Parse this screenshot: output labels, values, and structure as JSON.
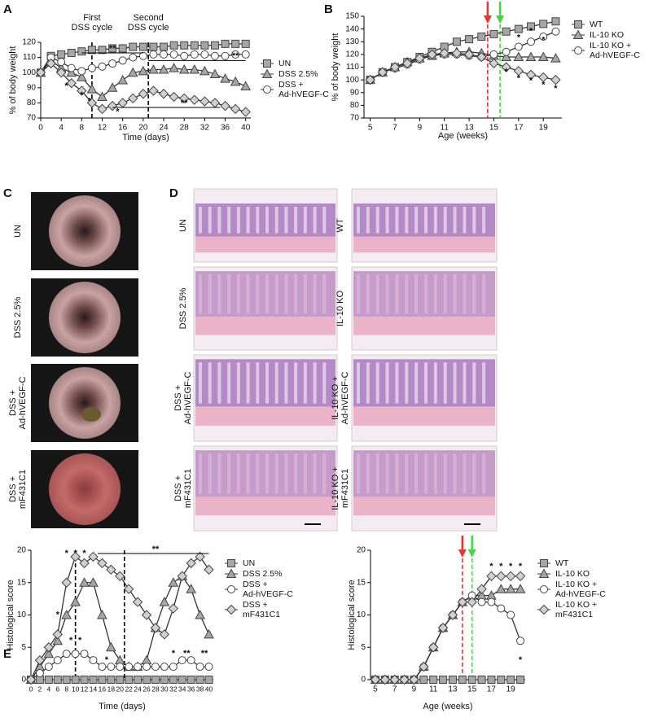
{
  "panel_labels": [
    "A",
    "B",
    "C",
    "D",
    "E"
  ],
  "photo_panels": {
    "C": [
      "UN",
      "DSS 2.5%",
      "DSS +\nAd-hVEGF-C",
      "DSS +\nmF431C1"
    ],
    "D_left": [
      "UN",
      "DSS 2.5%",
      "DSS +\nAd-hVEGF-C",
      "DSS +\nmF431C1"
    ],
    "D_right": [
      "WT",
      "IL-10 KO",
      "IL-10 KO +\nAd-hVEGF-C",
      "IL-10 KO +\nmF431C1"
    ]
  },
  "chart_data": [
    {
      "type": "line",
      "xlabel": "Time (days)",
      "ylabel": "% of body weight",
      "x": [
        0,
        2,
        4,
        6,
        8,
        10,
        12,
        14,
        16,
        18,
        20,
        22,
        24,
        26,
        28,
        30,
        32,
        34,
        36,
        38,
        40
      ],
      "xlim": [
        0,
        41
      ],
      "xticks": [
        0,
        4,
        8,
        12,
        16,
        20,
        24,
        28,
        32,
        36,
        40
      ],
      "ylim": [
        70,
        120
      ],
      "yticks": [
        70,
        80,
        90,
        100,
        110,
        120
      ],
      "series": [
        {
          "name": "UN",
          "color": "#a6a6a6",
          "marker": "square",
          "values": [
            100,
            111,
            112,
            113,
            114,
            115,
            115,
            116,
            116,
            117,
            117,
            117,
            117,
            118,
            118,
            118,
            118,
            118,
            119,
            119,
            119
          ]
        },
        {
          "name": "DSS 2.5%",
          "color": "#a6a6a6",
          "marker": "triangle",
          "values": [
            100,
            108,
            103,
            100,
            97,
            89,
            84,
            90,
            95,
            100,
            101,
            102,
            102,
            103,
            102,
            102,
            101,
            99,
            96,
            94,
            91
          ]
        },
        {
          "name": "DSS +\nAd-hVEGF-C",
          "color": "#ffffff",
          "marker": "circle",
          "values": [
            100,
            110,
            107,
            103,
            101,
            103,
            104,
            106,
            108,
            110,
            111,
            112,
            112,
            112,
            111,
            112,
            112,
            111,
            111,
            112,
            112
          ]
        },
        {
          "name": null,
          "color": "#d0d0d0",
          "marker": "diamond",
          "values": [
            100,
            106,
            100,
            93,
            88,
            80,
            76,
            78,
            80,
            83,
            86,
            88,
            86,
            84,
            83,
            82,
            81,
            80,
            78,
            76,
            74
          ]
        }
      ],
      "vlines": [
        {
          "x": 10,
          "color": "#000000",
          "dash": true,
          "arrow": false
        },
        {
          "x": 21,
          "color": "#000000",
          "dash": true,
          "arrow": false
        }
      ],
      "annotations": [
        {
          "text": "First\nDSS cycle",
          "x": 10,
          "y": 133
        },
        {
          "text": "Second\nDSS cycle",
          "x": 21,
          "y": 133
        },
        {
          "text": "**",
          "x": 14,
          "y": 113,
          "bar": [
            8,
            20
          ]
        },
        {
          "text": "**",
          "x": 38,
          "y": 108,
          "bar": [
            21,
            40
          ]
        },
        {
          "text": "**",
          "x": 28,
          "y": 77,
          "bar": [
            14,
            35
          ]
        },
        {
          "text": "*",
          "x": 5,
          "y": 91
        },
        {
          "text": "*",
          "x": 8,
          "y": 85
        },
        {
          "text": "*",
          "x": 9.5,
          "y": 81
        },
        {
          "text": "*",
          "x": 15,
          "y": 74
        }
      ]
    },
    {
      "type": "line",
      "xlabel": "Age (weeks)",
      "ylabel": "% of body weight",
      "x": [
        5,
        6,
        7,
        8,
        9,
        10,
        11,
        12,
        13,
        14,
        15,
        16,
        17,
        18,
        19,
        20
      ],
      "xlim": [
        4.5,
        20.5
      ],
      "xticks": [
        5,
        7,
        9,
        11,
        13,
        15,
        17,
        19
      ],
      "ylim": [
        70,
        150
      ],
      "yticks": [
        70,
        80,
        90,
        100,
        110,
        120,
        130,
        140,
        150
      ],
      "series": [
        {
          "name": "WT",
          "color": "#a6a6a6",
          "marker": "square",
          "values": [
            100,
            106,
            110,
            114,
            118,
            122,
            126,
            130,
            132,
            134,
            136,
            138,
            140,
            142,
            144,
            146
          ]
        },
        {
          "name": "IL-10 KO",
          "color": "#a6a6a6",
          "marker": "triangle",
          "values": [
            100,
            106,
            110,
            114,
            117,
            119,
            121,
            122,
            122,
            121,
            119,
            118,
            118,
            118,
            118,
            117
          ]
        },
        {
          "name": "IL-10 KO +\nAd-hVEGF-C",
          "color": "#ffffff",
          "marker": "circle",
          "values": [
            100,
            106,
            109,
            112,
            116,
            119,
            120,
            120,
            119,
            118,
            120,
            122,
            126,
            130,
            134,
            138
          ]
        },
        {
          "name": null,
          "color": "#d0d0d0",
          "marker": "diamond",
          "values": [
            100,
            106,
            110,
            113,
            117,
            120,
            121,
            121,
            120,
            118,
            113,
            110,
            107,
            104,
            102,
            100
          ]
        }
      ],
      "vlines": [
        {
          "x": 14.5,
          "color": "#e8352e",
          "dash": true,
          "arrow": true
        },
        {
          "x": 15.5,
          "color": "#3ddc3a",
          "dash": true,
          "arrow": true
        }
      ],
      "annotations": [
        {
          "text": "*",
          "x": 16,
          "y": 106
        },
        {
          "text": "*",
          "x": 17,
          "y": 101
        },
        {
          "text": "*",
          "x": 18,
          "y": 99
        },
        {
          "text": "*",
          "x": 19,
          "y": 96
        },
        {
          "text": "*",
          "x": 20,
          "y": 93
        },
        {
          "text": "*",
          "x": 17,
          "y": 133
        },
        {
          "text": "*",
          "x": 18,
          "y": 138
        },
        {
          "text": "*",
          "x": 19,
          "y": 131
        }
      ]
    },
    {
      "type": "line",
      "xlabel": "Time (days)",
      "ylabel": "Histological score",
      "x": [
        0,
        2,
        4,
        6,
        8,
        10,
        12,
        14,
        16,
        18,
        20,
        22,
        24,
        26,
        28,
        30,
        32,
        34,
        36,
        38,
        40
      ],
      "xlim": [
        0,
        41
      ],
      "xticks": [
        0,
        2,
        4,
        6,
        8,
        10,
        12,
        14,
        16,
        18,
        20,
        22,
        24,
        26,
        28,
        30,
        32,
        34,
        36,
        38,
        40
      ],
      "ylim": [
        0,
        20
      ],
      "yticks": [
        0,
        5,
        10,
        15,
        20
      ],
      "series": [
        {
          "name": "UN",
          "color": "#a6a6a6",
          "marker": "square",
          "values": [
            0,
            0,
            0,
            0,
            0,
            0,
            0,
            0,
            0,
            0,
            0,
            0,
            0,
            0,
            0,
            0,
            0,
            0,
            0,
            0,
            0
          ]
        },
        {
          "name": "DSS 2.5%",
          "color": "#a6a6a6",
          "marker": "triangle",
          "values": [
            0,
            2,
            4,
            6,
            10,
            12,
            15,
            15,
            10,
            5,
            3,
            2,
            2,
            3,
            8,
            12,
            15,
            16,
            14,
            10,
            7
          ]
        },
        {
          "name": "DSS +\nAd-hVEGF-C",
          "color": "#ffffff",
          "marker": "circle",
          "values": [
            0,
            1,
            2,
            3,
            4,
            4,
            4,
            3,
            2,
            2,
            2,
            2,
            2,
            2,
            2,
            2,
            2,
            3,
            3,
            2,
            2
          ]
        },
        {
          "name": "DSS +\nmF431C1",
          "color": "#d0d0d0",
          "marker": "diamond",
          "values": [
            0,
            3,
            5,
            7,
            15,
            19,
            18,
            19,
            18,
            17,
            16,
            14,
            12,
            10,
            8,
            7,
            11,
            16,
            18,
            19,
            17
          ]
        }
      ],
      "vlines": [
        {
          "x": 10,
          "color": "#000000",
          "dash": true,
          "arrow": false
        },
        {
          "x": 21,
          "color": "#000000",
          "dash": true,
          "arrow": false
        }
      ],
      "annotations": [
        {
          "text": "**",
          "x": 28,
          "y": 19.5,
          "bar": [
            15,
            40
          ]
        },
        {
          "text": "*",
          "x": 8,
          "y": 19.5
        },
        {
          "text": "*",
          "x": 10,
          "y": 19.5
        },
        {
          "text": "*",
          "x": 12,
          "y": 19.5
        },
        {
          "text": "*",
          "x": 6,
          "y": 10
        },
        {
          "text": "*",
          "x": 9,
          "y": 6
        },
        {
          "text": "*",
          "x": 11,
          "y": 6
        },
        {
          "text": "*",
          "x": 17,
          "y": 3
        },
        {
          "text": "*",
          "x": 32,
          "y": 4
        },
        {
          "text": "**",
          "x": 35,
          "y": 4
        },
        {
          "text": "**",
          "x": 39,
          "y": 4
        }
      ]
    },
    {
      "type": "line",
      "xlabel": "Age (weeks)",
      "ylabel": "Histological score",
      "x": [
        5,
        6,
        7,
        8,
        9,
        10,
        11,
        12,
        13,
        14,
        15,
        16,
        17,
        18,
        19,
        20
      ],
      "xlim": [
        4.5,
        20.5
      ],
      "xticks": [
        5,
        7,
        9,
        11,
        13,
        15,
        17,
        19
      ],
      "ylim": [
        0,
        20
      ],
      "yticks": [
        0,
        5,
        10,
        15,
        20
      ],
      "series": [
        {
          "name": "WT",
          "color": "#a6a6a6",
          "marker": "square",
          "values": [
            0,
            0,
            0,
            0,
            0,
            0,
            0,
            0,
            0,
            0,
            0,
            0,
            0,
            0,
            0,
            0
          ]
        },
        {
          "name": "IL-10 KO",
          "color": "#a6a6a6",
          "marker": "triangle",
          "values": [
            0,
            0,
            0,
            0,
            0,
            2,
            5,
            8,
            10,
            12,
            13,
            13,
            13,
            14,
            14,
            14
          ]
        },
        {
          "name": "IL-10 KO +\nAd-hVEGF-C",
          "color": "#ffffff",
          "marker": "circle",
          "values": [
            0,
            0,
            0,
            0,
            0,
            2,
            5,
            8,
            10,
            12,
            13,
            12,
            12,
            11,
            10,
            6
          ]
        },
        {
          "name": "IL-10 KO +\nmF431C1",
          "color": "#d0d0d0",
          "marker": "diamond",
          "values": [
            0,
            0,
            0,
            0,
            0,
            2,
            5,
            8,
            10,
            12,
            12,
            14,
            16,
            16,
            16,
            16
          ]
        }
      ],
      "vlines": [
        {
          "x": 14,
          "color": "#e8352e",
          "dash": true,
          "arrow": true
        },
        {
          "x": 15,
          "color": "#3ddc3a",
          "dash": true,
          "arrow": true
        }
      ],
      "annotations": [
        {
          "text": "*",
          "x": 17,
          "y": 17.5
        },
        {
          "text": "*",
          "x": 18,
          "y": 17.5
        },
        {
          "text": "*",
          "x": 19,
          "y": 17.5
        },
        {
          "text": "*",
          "x": 20,
          "y": 17.5
        },
        {
          "text": "*",
          "x": 20,
          "y": 3
        }
      ]
    }
  ]
}
